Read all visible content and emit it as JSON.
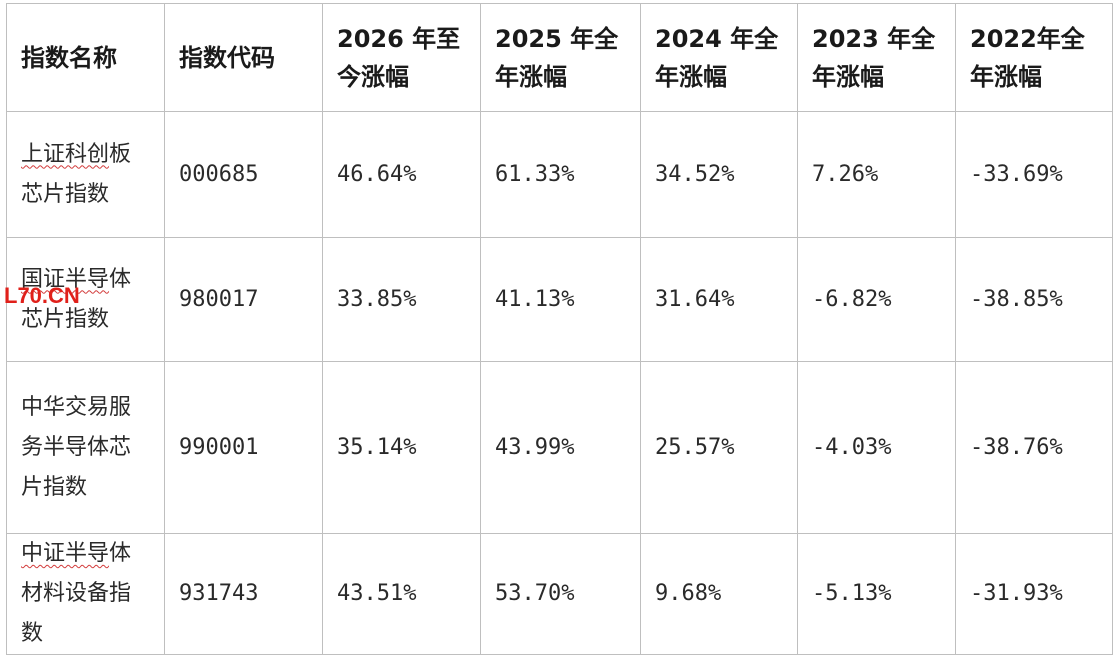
{
  "table": {
    "headers": {
      "name": "指数名称",
      "code": "指数代码",
      "y2026": "2026 年至今涨幅",
      "y2025": "2025 年全年涨幅",
      "y2024": "2024 年全年涨幅",
      "y2023": "2023 年全年涨幅",
      "y2022": "2022年全年涨幅"
    },
    "rows": [
      {
        "name_ul": "上证科创",
        "name_rest": "板芯片指数",
        "code": "000685",
        "y2026": "46.64%",
        "y2025": "61.33%",
        "y2024": "34.52%",
        "y2023": "7.26%",
        "y2022": "-33.69%"
      },
      {
        "name_ul": "国证半导",
        "name_rest": "体芯片指数",
        "code": "980017",
        "y2026": "33.85%",
        "y2025": "41.13%",
        "y2024": "31.64%",
        "y2023": "-6.82%",
        "y2022": "-38.85%"
      },
      {
        "name_ul": "",
        "name_rest": "中华交易服务半导体芯片指数",
        "code": "990001",
        "y2026": "35.14%",
        "y2025": "43.99%",
        "y2024": "25.57%",
        "y2023": "-4.03%",
        "y2022": "-38.76%"
      },
      {
        "name_ul": "中证半导",
        "name_rest": "体材料设备指数",
        "code": "931743",
        "y2026": "43.51%",
        "y2025": "53.70%",
        "y2024": "9.68%",
        "y2023": "-5.13%",
        "y2022": "-31.93%"
      }
    ]
  },
  "watermark": {
    "text": "L70.CN",
    "color": "#e0201a"
  }
}
